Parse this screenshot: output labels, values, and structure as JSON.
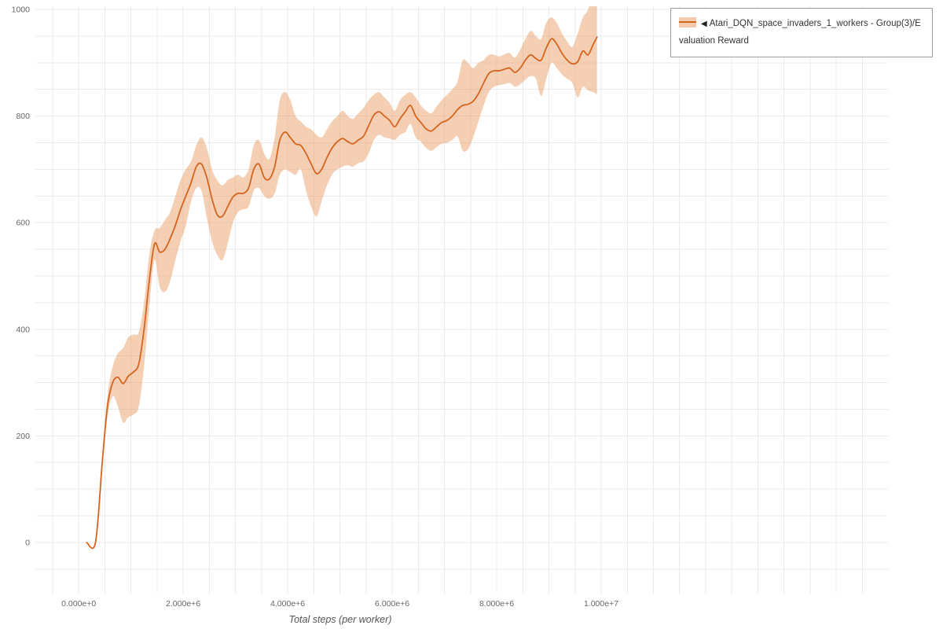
{
  "chart_data": {
    "type": "line",
    "title": "",
    "xlabel": "Total steps (per worker)",
    "ylabel": "",
    "xlim": [
      -830000,
      15490000
    ],
    "ylim": [
      -96,
      1006
    ],
    "x_grid_step": 500000,
    "y_grid_step": 50,
    "grid": true,
    "grid_color": "#ebebeb",
    "tick_color": "#666666",
    "x_ticks": [
      {
        "value": 0,
        "label": "0.000e+0"
      },
      {
        "value": 2000000,
        "label": "2.000e+6"
      },
      {
        "value": 4000000,
        "label": "4.000e+6"
      },
      {
        "value": 6000000,
        "label": "6.000e+6"
      },
      {
        "value": 8000000,
        "label": "8.000e+6"
      },
      {
        "value": 10000000,
        "label": "1.000e+7"
      }
    ],
    "y_ticks": [
      {
        "value": 0,
        "label": "0"
      },
      {
        "value": 200,
        "label": "200"
      },
      {
        "value": 400,
        "label": "400"
      },
      {
        "value": 600,
        "label": "600"
      },
      {
        "value": 800,
        "label": "800"
      },
      {
        "value": 1000,
        "label": "1000"
      }
    ],
    "series": [
      {
        "name": "Atari_DQN_space_invaders_1_workers - Group(3)/Evaluation Reward",
        "color": "#d4641e",
        "band_color": "#e89558",
        "band_opacity": 0.45,
        "x": [
          150000,
          320000,
          450000,
          550000,
          650000,
          750000,
          850000,
          950000,
          1050000,
          1150000,
          1250000,
          1350000,
          1450000,
          1550000,
          1650000,
          1750000,
          1850000,
          1950000,
          2050000,
          2150000,
          2250000,
          2350000,
          2450000,
          2550000,
          2650000,
          2750000,
          2850000,
          2950000,
          3050000,
          3150000,
          3250000,
          3350000,
          3450000,
          3550000,
          3650000,
          3750000,
          3850000,
          3950000,
          4050000,
          4150000,
          4250000,
          4350000,
          4450000,
          4550000,
          4650000,
          4750000,
          4850000,
          4950000,
          5050000,
          5150000,
          5250000,
          5350000,
          5450000,
          5550000,
          5650000,
          5750000,
          5850000,
          5950000,
          6050000,
          6150000,
          6250000,
          6350000,
          6450000,
          6550000,
          6650000,
          6750000,
          6850000,
          6950000,
          7050000,
          7150000,
          7250000,
          7350000,
          7450000,
          7550000,
          7650000,
          7750000,
          7850000,
          7950000,
          8050000,
          8150000,
          8250000,
          8350000,
          8450000,
          8550000,
          8650000,
          8750000,
          8850000,
          8950000,
          9050000,
          9150000,
          9250000,
          9350000,
          9450000,
          9550000,
          9650000,
          9750000,
          9850000,
          9920000
        ],
        "y": [
          0,
          0,
          150,
          255,
          300,
          310,
          298,
          312,
          320,
          335,
          400,
          490,
          560,
          545,
          550,
          570,
          595,
          625,
          650,
          675,
          705,
          710,
          685,
          645,
          615,
          612,
          630,
          648,
          655,
          655,
          665,
          700,
          710,
          685,
          682,
          705,
          755,
          770,
          760,
          748,
          745,
          730,
          710,
          692,
          700,
          722,
          740,
          752,
          758,
          752,
          748,
          755,
          762,
          782,
          802,
          808,
          800,
          792,
          780,
          795,
          808,
          820,
          800,
          788,
          776,
          772,
          780,
          788,
          792,
          800,
          812,
          820,
          822,
          828,
          842,
          862,
          880,
          885,
          885,
          888,
          890,
          882,
          890,
          905,
          915,
          908,
          905,
          928,
          945,
          935,
          918,
          905,
          898,
          902,
          922,
          915,
          935,
          948
        ],
        "y_lower": [
          0,
          0,
          140,
          235,
          275,
          255,
          225,
          235,
          240,
          255,
          330,
          440,
          530,
          480,
          470,
          490,
          530,
          565,
          595,
          640,
          665,
          660,
          610,
          565,
          540,
          530,
          560,
          600,
          620,
          625,
          630,
          660,
          665,
          650,
          645,
          655,
          690,
          700,
          695,
          690,
          700,
          660,
          630,
          612,
          640,
          670,
          690,
          700,
          705,
          708,
          705,
          712,
          715,
          730,
          755,
          765,
          760,
          758,
          755,
          765,
          770,
          785,
          760,
          752,
          740,
          735,
          742,
          748,
          750,
          755,
          762,
          735,
          738,
          760,
          790,
          820,
          845,
          855,
          858,
          860,
          862,
          855,
          860,
          868,
          875,
          870,
          838,
          870,
          900,
          890,
          878,
          870,
          862,
          835,
          855,
          848,
          845,
          840
        ],
        "y_upper": [
          0,
          0,
          160,
          275,
          330,
          355,
          365,
          385,
          390,
          395,
          450,
          540,
          585,
          590,
          605,
          620,
          650,
          680,
          700,
          715,
          745,
          760,
          740,
          700,
          680,
          670,
          680,
          685,
          690,
          685,
          700,
          745,
          755,
          730,
          720,
          760,
          830,
          845,
          830,
          800,
          790,
          780,
          775,
          765,
          760,
          775,
          790,
          800,
          810,
          800,
          795,
          805,
          815,
          830,
          840,
          845,
          835,
          825,
          810,
          830,
          840,
          845,
          835,
          820,
          810,
          805,
          818,
          830,
          840,
          850,
          865,
          905,
          900,
          890,
          900,
          905,
          915,
          915,
          912,
          916,
          918,
          910,
          925,
          945,
          960,
          950,
          945,
          975,
          985,
          975,
          955,
          940,
          930,
          955,
          985,
          1000,
          1040,
          1045
        ]
      }
    ],
    "legend_position": "top-right"
  },
  "legend": {
    "items": [
      {
        "collapse_marker": "◀",
        "label": "Atari_DQN_space_invaders_1_workers - Group(3)/Evaluation Reward",
        "color": "#d4641e",
        "band_color": "#e89558"
      }
    ]
  }
}
